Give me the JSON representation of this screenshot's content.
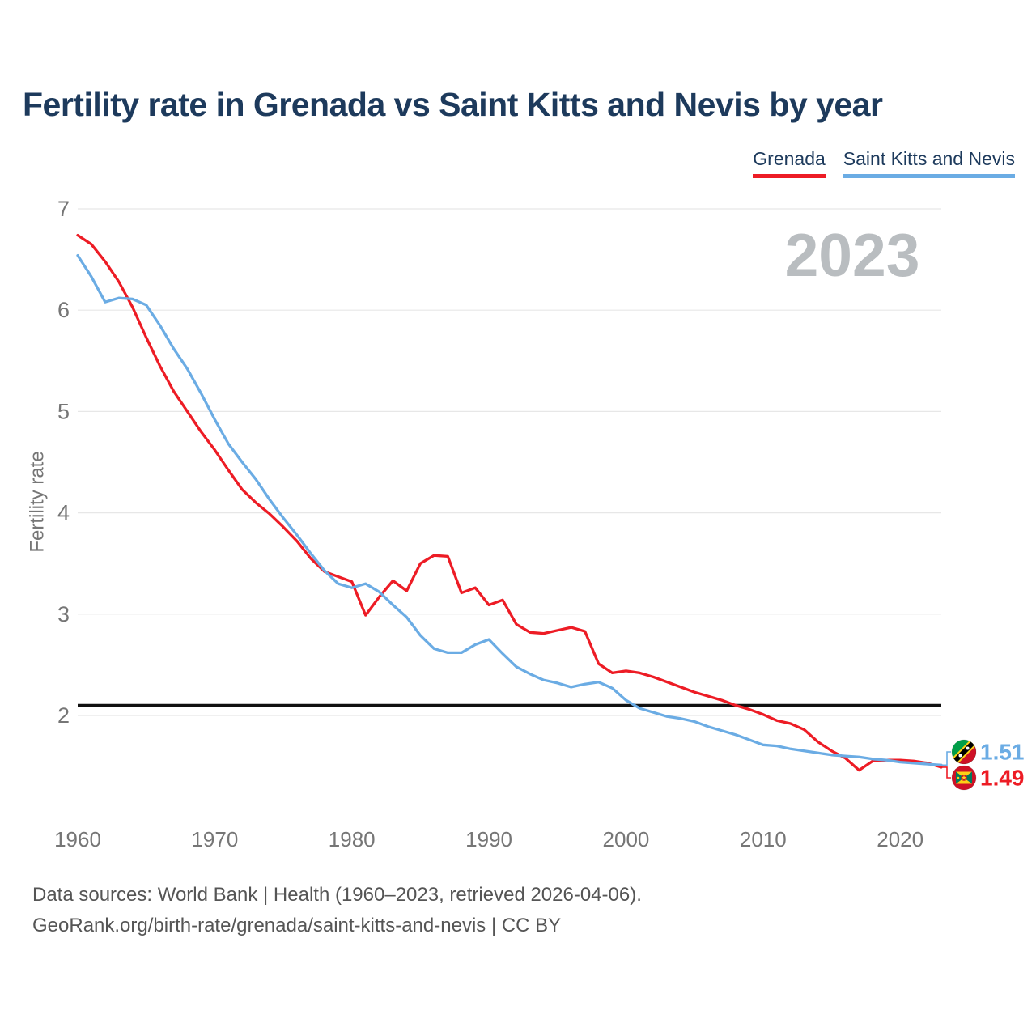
{
  "header": {
    "title": "Fertility rate in Grenada vs Saint Kitts and Nevis by year"
  },
  "legend": [
    {
      "label": "Grenada",
      "color": "#ed1c25"
    },
    {
      "label": "Saint Kitts and Nevis",
      "color": "#6bace4"
    }
  ],
  "footer": {
    "line1": "Data sources: World Bank | Health (1960–2023, retrieved 2026-04-06).",
    "line2": "GeoRank.org/birth-rate/grenada/saint-kitts-and-nevis | CC BY"
  },
  "chart_data": {
    "type": "line",
    "title": "Fertility rate in Grenada vs Saint Kitts and Nevis by year",
    "ylabel": "Fertility rate",
    "xlabel": "",
    "year_watermark": "2023",
    "watermark_color": "#b9bdc0",
    "grid": true,
    "legend_position": "top-right",
    "y_ticks": [
      7,
      6,
      5,
      4,
      3,
      2
    ],
    "x_ticks": [
      1960,
      1970,
      1980,
      1990,
      2000,
      2010,
      2020
    ],
    "axis_range": {
      "x": [
        1960,
        2023
      ],
      "y_ticks_span": [
        2,
        7
      ]
    },
    "reference_line": {
      "value": 2.1,
      "color": "#111111"
    },
    "tick_color": "#767676",
    "grid_color": "#e7e7e7",
    "x": [
      1960,
      1961,
      1962,
      1963,
      1964,
      1965,
      1966,
      1967,
      1968,
      1969,
      1970,
      1971,
      1972,
      1973,
      1974,
      1975,
      1976,
      1977,
      1978,
      1979,
      1980,
      1981,
      1982,
      1983,
      1984,
      1985,
      1986,
      1987,
      1988,
      1989,
      1990,
      1991,
      1992,
      1993,
      1994,
      1995,
      1996,
      1997,
      1998,
      1999,
      2000,
      2001,
      2002,
      2003,
      2004,
      2005,
      2006,
      2007,
      2008,
      2009,
      2010,
      2011,
      2012,
      2013,
      2014,
      2015,
      2016,
      2017,
      2018,
      2019,
      2020,
      2021,
      2022,
      2023
    ],
    "series": [
      {
        "name": "Grenada",
        "color": "#ed1c25",
        "flag": "grenada",
        "end_label": "1.49",
        "values": [
          6.74,
          6.65,
          6.48,
          6.28,
          6.03,
          5.73,
          5.45,
          5.2,
          5.0,
          4.8,
          4.62,
          4.42,
          4.23,
          4.1,
          3.99,
          3.86,
          3.72,
          3.55,
          3.42,
          3.37,
          3.32,
          2.99,
          3.17,
          3.33,
          3.23,
          3.5,
          3.58,
          3.57,
          3.21,
          3.26,
          3.09,
          3.14,
          2.9,
          2.82,
          2.81,
          2.84,
          2.87,
          2.83,
          2.51,
          2.42,
          2.44,
          2.42,
          2.38,
          2.33,
          2.28,
          2.23,
          2.19,
          2.15,
          2.1,
          2.06,
          2.01,
          1.95,
          1.92,
          1.86,
          1.74,
          1.65,
          1.58,
          1.46,
          1.55,
          1.56,
          1.56,
          1.55,
          1.53,
          1.49
        ]
      },
      {
        "name": "Saint Kitts and Nevis",
        "color": "#6bace4",
        "flag": "saint-kitts-and-nevis",
        "end_label": "1.51",
        "values": [
          6.54,
          6.33,
          6.08,
          6.12,
          6.11,
          6.05,
          5.85,
          5.62,
          5.42,
          5.18,
          4.92,
          4.68,
          4.5,
          4.33,
          4.13,
          3.95,
          3.78,
          3.6,
          3.43,
          3.3,
          3.26,
          3.3,
          3.22,
          3.09,
          2.97,
          2.79,
          2.66,
          2.62,
          2.62,
          2.7,
          2.75,
          2.61,
          2.48,
          2.41,
          2.35,
          2.32,
          2.28,
          2.31,
          2.33,
          2.27,
          2.15,
          2.07,
          2.03,
          1.99,
          1.97,
          1.94,
          1.89,
          1.85,
          1.81,
          1.76,
          1.71,
          1.7,
          1.67,
          1.65,
          1.63,
          1.61,
          1.6,
          1.59,
          1.57,
          1.56,
          1.54,
          1.53,
          1.52,
          1.51
        ]
      }
    ]
  }
}
